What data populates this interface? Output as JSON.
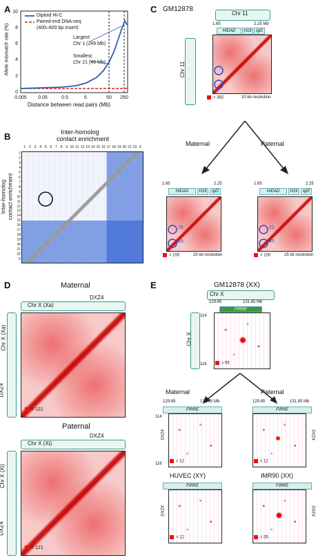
{
  "panels": {
    "A": {
      "letter": "A",
      "legend": [
        "Diploid Hi-C",
        "Paired-end DNA-seq",
        "(400–600 bp insert)"
      ],
      "ylabel": "Allele mismatch rate (%)",
      "xlabel": "Distance between read pairs (Mb)",
      "annot_largest": "Largest:",
      "annot_largest_val": "Chr 1 (249 Mb)",
      "annot_smallest": "Smallest:",
      "annot_smallest_val": "Chr 21 (48 Mb)",
      "colors": {
        "hic": "#2a5db0",
        "dnaseq": "#d42020"
      }
    },
    "B": {
      "letter": "B",
      "title1": "Inter-homolog",
      "title2": "contact enrichment",
      "ylabel1": "Inter-homolog",
      "ylabel2": "contact enrichment",
      "col_labels": [
        "1",
        "2",
        "3",
        "4",
        "5",
        "6",
        "7",
        "8",
        "9",
        "10",
        "11",
        "12",
        "13",
        "14",
        "15",
        "16",
        "17",
        "18",
        "19",
        "20",
        "21",
        "22",
        "X"
      ],
      "row_labels": [
        "1",
        "2",
        "3",
        "4",
        "5",
        "6",
        "7",
        "8",
        "9",
        "10",
        "11",
        "12",
        "13",
        "14",
        "15",
        "16",
        "17",
        "18",
        "19",
        "20",
        "21",
        "22",
        "X"
      ]
    },
    "C": {
      "letter": "C",
      "cell": "GM12878",
      "chr": "Chr 11",
      "coord_start": "1.65",
      "coord_end": "2.25 Mb",
      "genes": [
        "HIDAD",
        "H19",
        "Igf2"
      ],
      "scale": "= 382",
      "resolution": "10 kb resolution",
      "maternal": "Maternal",
      "paternal": "Paternal",
      "sub_coord_start": "1.65",
      "sub_coord_end": "2.25",
      "sub_scale": "= 100",
      "sub_resolution": "25 kb resolution",
      "mat_counts": [
        "78",
        "19"
      ],
      "pat_counts": [
        "21",
        "45"
      ]
    },
    "D": {
      "letter": "D",
      "maternal": "Maternal",
      "paternal": "Paternal",
      "dxz4": "DXZ4",
      "chrx_xa": "Chr X (Xa)",
      "chrx_xi": "Chr X (Xi)",
      "scale_m": "= 121",
      "scale_p": "= 121"
    },
    "E": {
      "letter": "E",
      "cell": "GM12878 (XX)",
      "chr": "Chr X",
      "coord_start": "129.85",
      "coord_end": "131.85 Mb",
      "firre": "FIRRE",
      "dxz4": "DXZ4",
      "row_top": "114",
      "row_bot": "116",
      "scale": "= 65",
      "maternal": "Maternal",
      "paternal": "Paternal",
      "sub_start": "129.85",
      "sub_end": "131.85 Mb",
      "scale_m": "= 12",
      "scale_p": "= 12",
      "huvec": "HUVEC (XY)",
      "imr90": "IMR90 (XX)",
      "scale_h": "= 12",
      "scale_i": "= 55"
    }
  }
}
